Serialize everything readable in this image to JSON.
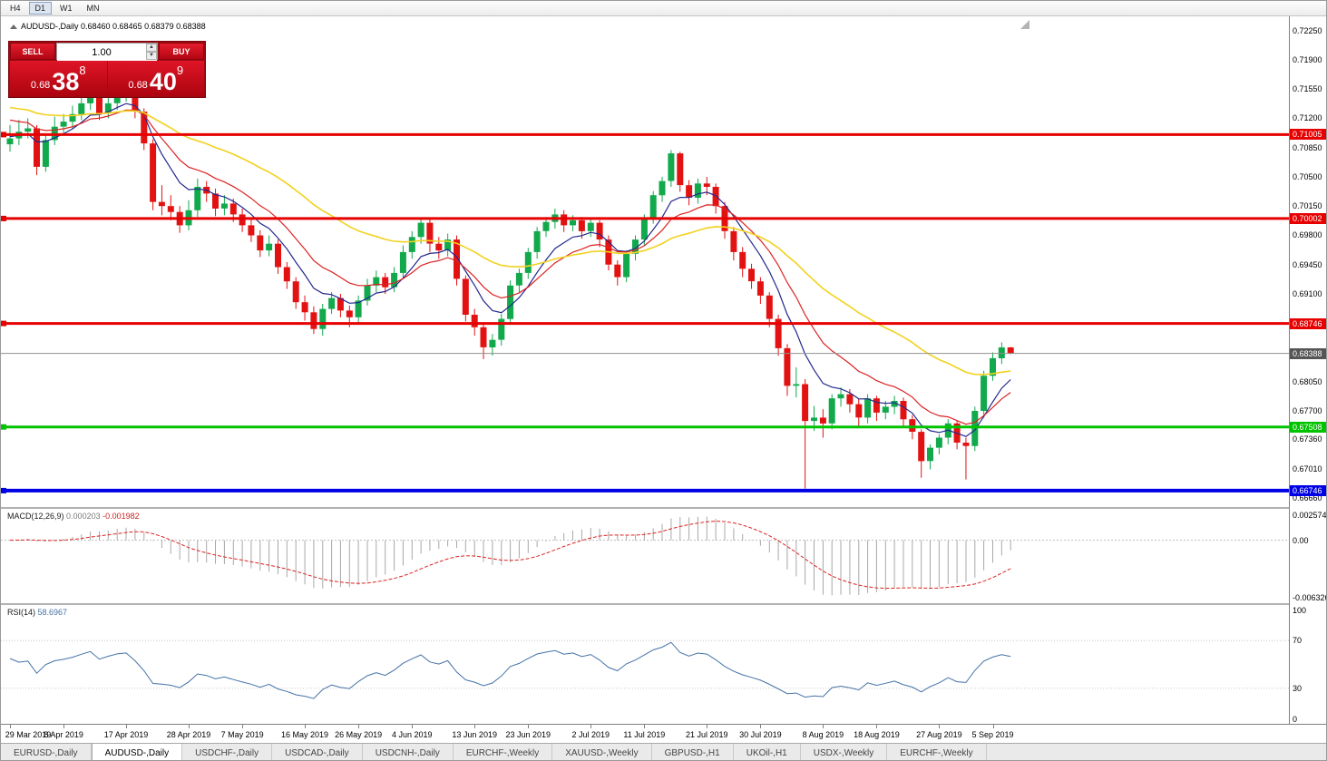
{
  "window": {
    "timeframes": [
      "H4",
      "D1",
      "W1",
      "MN"
    ],
    "active_timeframe": "D1"
  },
  "header": {
    "symbol_line": "AUDUSD-,Daily 0.68460 0.68465 0.68379 0.68388"
  },
  "one_click": {
    "sell_label": "SELL",
    "buy_label": "BUY",
    "volume": "1.00",
    "sell_price_small": "0.68",
    "sell_price_big": "38",
    "sell_price_sup": "8",
    "buy_price_small": "0.68",
    "buy_price_big": "40",
    "buy_price_sup": "9"
  },
  "chart_data": {
    "type": "candlestick",
    "symbol": "AUDUSD-,Daily",
    "ohlc_header": {
      "open": "0.68460",
      "high": "0.68465",
      "low": "0.68379",
      "close": "0.68388"
    },
    "ylim": [
      0.6655,
      0.7242
    ],
    "colors": {
      "up": "#11a94c",
      "down": "#e31212",
      "current_tag": "#555555"
    },
    "price_axis_labels": [
      "0.72250",
      "0.71900",
      "0.71550",
      "0.71200",
      "0.70850",
      "0.70500",
      "0.70150",
      "0.69800",
      "0.69450",
      "0.69100",
      "0.68750",
      "0.68400",
      "0.68050",
      "0.67700",
      "0.67360",
      "0.67010",
      "0.66660"
    ],
    "h_lines": [
      {
        "price": 0.71005,
        "label": "0.71005",
        "color": "#e60000",
        "width": 3
      },
      {
        "price": 0.70002,
        "label": "0.70002",
        "color": "#e60000",
        "width": 3
      },
      {
        "price": 0.68746,
        "label": "0.68746",
        "color": "#e60000",
        "width": 3
      },
      {
        "price": 0.67508,
        "label": "0.67508",
        "color": "#00c300",
        "width": 3
      },
      {
        "price": 0.66746,
        "label": "0.66746",
        "color": "#0000e6",
        "width": 4
      }
    ],
    "current_price": {
      "value": 0.68388,
      "label": "0.68388"
    },
    "moving_averages": [
      {
        "name": "ma-fast-navy",
        "period": 7,
        "seed": 0.7098,
        "color": "#23288e",
        "width": 1.2
      },
      {
        "name": "ma-mid-red",
        "period": 13,
        "seed": 0.7118,
        "color": "#dd2222",
        "width": 1.2
      },
      {
        "name": "ma-slow-yellow",
        "period": 34,
        "seed": 0.7133,
        "color": "#f2d21f",
        "width": 1.6
      }
    ],
    "date_ticks": [
      {
        "i": 0,
        "label": "29 Mar 2019"
      },
      {
        "i": 6,
        "label": "8 Apr 2019"
      },
      {
        "i": 13,
        "label": "17 Apr 2019"
      },
      {
        "i": 20,
        "label": "28 Apr 2019"
      },
      {
        "i": 26,
        "label": "7 May 2019"
      },
      {
        "i": 33,
        "label": "16 May 2019"
      },
      {
        "i": 39,
        "label": "26 May 2019"
      },
      {
        "i": 45,
        "label": "4 Jun 2019"
      },
      {
        "i": 52,
        "label": "13 Jun 2019"
      },
      {
        "i": 58,
        "label": "23 Jun 2019"
      },
      {
        "i": 65,
        "label": "2 Jul 2019"
      },
      {
        "i": 71,
        "label": "11 Jul 2019"
      },
      {
        "i": 78,
        "label": "21 Jul 2019"
      },
      {
        "i": 84,
        "label": "30 Jul 2019"
      },
      {
        "i": 91,
        "label": "8 Aug 2019"
      },
      {
        "i": 97,
        "label": "18 Aug 2019"
      },
      {
        "i": 104,
        "label": "27 Aug 2019"
      },
      {
        "i": 110,
        "label": "5 Sep 2019"
      }
    ],
    "candles": [
      [
        0.7089,
        0.7112,
        0.708,
        0.7096
      ],
      [
        0.7096,
        0.7118,
        0.7088,
        0.7104
      ],
      [
        0.7104,
        0.712,
        0.7096,
        0.7108
      ],
      [
        0.7108,
        0.7112,
        0.7052,
        0.7062
      ],
      [
        0.7062,
        0.71,
        0.7056,
        0.7094
      ],
      [
        0.7094,
        0.7122,
        0.7088,
        0.711
      ],
      [
        0.711,
        0.7125,
        0.71,
        0.7116
      ],
      [
        0.7116,
        0.7135,
        0.7108,
        0.7125
      ],
      [
        0.7125,
        0.7145,
        0.7118,
        0.7138
      ],
      [
        0.7138,
        0.7158,
        0.713,
        0.715
      ],
      [
        0.715,
        0.7155,
        0.7118,
        0.7126
      ],
      [
        0.7126,
        0.7146,
        0.712,
        0.7138
      ],
      [
        0.7138,
        0.7155,
        0.713,
        0.7148
      ],
      [
        0.7148,
        0.716,
        0.714,
        0.7152
      ],
      [
        0.7152,
        0.7158,
        0.712,
        0.7128
      ],
      [
        0.7128,
        0.7132,
        0.7082,
        0.709
      ],
      [
        0.709,
        0.7095,
        0.701,
        0.702
      ],
      [
        0.702,
        0.704,
        0.7004,
        0.7015
      ],
      [
        0.7015,
        0.7028,
        0.6998,
        0.7008
      ],
      [
        0.7008,
        0.7015,
        0.6983,
        0.6992
      ],
      [
        0.6992,
        0.7022,
        0.6986,
        0.701
      ],
      [
        0.701,
        0.7048,
        0.7002,
        0.7038
      ],
      [
        0.7038,
        0.7045,
        0.702,
        0.703
      ],
      [
        0.703,
        0.7036,
        0.7003,
        0.7012
      ],
      [
        0.7012,
        0.7028,
        0.7004,
        0.7018
      ],
      [
        0.7018,
        0.7024,
        0.6996,
        0.7005
      ],
      [
        0.7005,
        0.7012,
        0.6984,
        0.6992
      ],
      [
        0.6992,
        0.7,
        0.6972,
        0.698
      ],
      [
        0.698,
        0.6986,
        0.6954,
        0.6962
      ],
      [
        0.6962,
        0.698,
        0.6955,
        0.697
      ],
      [
        0.697,
        0.6975,
        0.6934,
        0.6942
      ],
      [
        0.6942,
        0.6948,
        0.6916,
        0.6925
      ],
      [
        0.6925,
        0.693,
        0.6892,
        0.69
      ],
      [
        0.69,
        0.6908,
        0.6878,
        0.6888
      ],
      [
        0.6888,
        0.6895,
        0.6862,
        0.6868
      ],
      [
        0.6868,
        0.6898,
        0.686,
        0.6892
      ],
      [
        0.6892,
        0.6912,
        0.6886,
        0.6905
      ],
      [
        0.6905,
        0.691,
        0.6882,
        0.689
      ],
      [
        0.689,
        0.6896,
        0.687,
        0.6882
      ],
      [
        0.6882,
        0.6908,
        0.6876,
        0.6902
      ],
      [
        0.6902,
        0.6928,
        0.6896,
        0.692
      ],
      [
        0.692,
        0.6938,
        0.6912,
        0.693
      ],
      [
        0.693,
        0.6935,
        0.691,
        0.6918
      ],
      [
        0.6918,
        0.6942,
        0.6912,
        0.6935
      ],
      [
        0.6935,
        0.6968,
        0.6928,
        0.696
      ],
      [
        0.696,
        0.6985,
        0.6952,
        0.6978
      ],
      [
        0.6978,
        0.7,
        0.697,
        0.6995
      ],
      [
        0.6995,
        0.7,
        0.696,
        0.697
      ],
      [
        0.697,
        0.6978,
        0.6952,
        0.6962
      ],
      [
        0.6962,
        0.6982,
        0.6955,
        0.6975
      ],
      [
        0.6975,
        0.698,
        0.692,
        0.6928
      ],
      [
        0.6928,
        0.6932,
        0.6877,
        0.6885
      ],
      [
        0.6885,
        0.6892,
        0.686,
        0.687
      ],
      [
        0.687,
        0.6876,
        0.6832,
        0.6846
      ],
      [
        0.6846,
        0.6862,
        0.6836,
        0.6855
      ],
      [
        0.6855,
        0.6886,
        0.6848,
        0.688
      ],
      [
        0.688,
        0.6926,
        0.6874,
        0.692
      ],
      [
        0.692,
        0.694,
        0.6912,
        0.6935
      ],
      [
        0.6935,
        0.6965,
        0.6928,
        0.696
      ],
      [
        0.696,
        0.699,
        0.6952,
        0.6985
      ],
      [
        0.6985,
        0.7002,
        0.6978,
        0.6996
      ],
      [
        0.6996,
        0.7012,
        0.6988,
        0.7005
      ],
      [
        0.7005,
        0.701,
        0.6984,
        0.6992
      ],
      [
        0.6992,
        0.7004,
        0.6985,
        0.6998
      ],
      [
        0.6998,
        0.7002,
        0.6976,
        0.6985
      ],
      [
        0.6985,
        0.7,
        0.6978,
        0.6995
      ],
      [
        0.6995,
        0.6998,
        0.6966,
        0.6975
      ],
      [
        0.6975,
        0.698,
        0.6938,
        0.6945
      ],
      [
        0.6945,
        0.695,
        0.692,
        0.693
      ],
      [
        0.693,
        0.6962,
        0.6924,
        0.6958
      ],
      [
        0.6958,
        0.698,
        0.695,
        0.6975
      ],
      [
        0.6975,
        0.7005,
        0.6968,
        0.7
      ],
      [
        0.7,
        0.7033,
        0.6994,
        0.7028
      ],
      [
        0.7028,
        0.705,
        0.702,
        0.7045
      ],
      [
        0.7045,
        0.7082,
        0.7038,
        0.7078
      ],
      [
        0.7078,
        0.708,
        0.7032,
        0.704
      ],
      [
        0.704,
        0.7046,
        0.7016,
        0.7025
      ],
      [
        0.7025,
        0.7048,
        0.7018,
        0.7042
      ],
      [
        0.7042,
        0.705,
        0.7028,
        0.7038
      ],
      [
        0.7038,
        0.7042,
        0.7006,
        0.7015
      ],
      [
        0.7015,
        0.702,
        0.6976,
        0.6985
      ],
      [
        0.6985,
        0.699,
        0.695,
        0.696
      ],
      [
        0.696,
        0.6966,
        0.693,
        0.694
      ],
      [
        0.694,
        0.6946,
        0.6916,
        0.6925
      ],
      [
        0.6925,
        0.693,
        0.6898,
        0.6908
      ],
      [
        0.6908,
        0.6912,
        0.687,
        0.688
      ],
      [
        0.688,
        0.6885,
        0.6836,
        0.6845
      ],
      [
        0.6845,
        0.685,
        0.6788,
        0.68
      ],
      [
        0.68,
        0.6822,
        0.6786,
        0.6802
      ],
      [
        0.6802,
        0.6808,
        0.6677,
        0.6758
      ],
      [
        0.6758,
        0.6776,
        0.6746,
        0.6762
      ],
      [
        0.6762,
        0.6772,
        0.6738,
        0.6755
      ],
      [
        0.6755,
        0.679,
        0.6748,
        0.6785
      ],
      [
        0.6785,
        0.6798,
        0.6775,
        0.679
      ],
      [
        0.679,
        0.6796,
        0.6768,
        0.6778
      ],
      [
        0.6778,
        0.6785,
        0.6752,
        0.6762
      ],
      [
        0.6762,
        0.679,
        0.6755,
        0.6785
      ],
      [
        0.6785,
        0.6788,
        0.6758,
        0.6768
      ],
      [
        0.6768,
        0.6782,
        0.676,
        0.6775
      ],
      [
        0.6775,
        0.6788,
        0.6766,
        0.6782
      ],
      [
        0.6782,
        0.6786,
        0.675,
        0.676
      ],
      [
        0.676,
        0.6765,
        0.6736,
        0.6745
      ],
      [
        0.6745,
        0.6748,
        0.669,
        0.671
      ],
      [
        0.671,
        0.673,
        0.67,
        0.6726
      ],
      [
        0.6726,
        0.6742,
        0.6718,
        0.6738
      ],
      [
        0.6738,
        0.676,
        0.673,
        0.6755
      ],
      [
        0.6755,
        0.6758,
        0.6724,
        0.6732
      ],
      [
        0.6732,
        0.6738,
        0.6688,
        0.6728
      ],
      [
        0.6728,
        0.6775,
        0.6722,
        0.677
      ],
      [
        0.677,
        0.6818,
        0.6762,
        0.6812
      ],
      [
        0.6812,
        0.684,
        0.6806,
        0.6833
      ],
      [
        0.6833,
        0.6852,
        0.6826,
        0.6846
      ],
      [
        0.6846,
        0.68465,
        0.68379,
        0.68388
      ]
    ],
    "macd": {
      "title": "MACD(12,26,9)",
      "main_value": "0.000203",
      "signal_value": "-0.001982",
      "axis_labels": [
        "0.002574",
        "0.00",
        "-0.006326"
      ],
      "params": [
        12,
        26,
        9
      ]
    },
    "rsi": {
      "title": "RSI(14)",
      "value": "58.6967",
      "period": 14,
      "levels": [
        70,
        30
      ],
      "axis_labels": [
        "100",
        "70",
        "30",
        "0"
      ]
    }
  },
  "tabs": {
    "items": [
      {
        "label": "EURUSD-,Daily",
        "active": false
      },
      {
        "label": "AUDUSD-,Daily",
        "active": true
      },
      {
        "label": "USDCHF-,Daily",
        "active": false
      },
      {
        "label": "USDCAD-,Daily",
        "active": false
      },
      {
        "label": "USDCNH-,Daily",
        "active": false
      },
      {
        "label": "EURCHF-,Weekly",
        "active": false
      },
      {
        "label": "XAUUSD-,Weekly",
        "active": false
      },
      {
        "label": "GBPUSD-,H1",
        "active": false
      },
      {
        "label": "UKOil-,H1",
        "active": false
      },
      {
        "label": "USDX-,Weekly",
        "active": false
      },
      {
        "label": "EURCHF-,Weekly",
        "active": false
      }
    ]
  }
}
